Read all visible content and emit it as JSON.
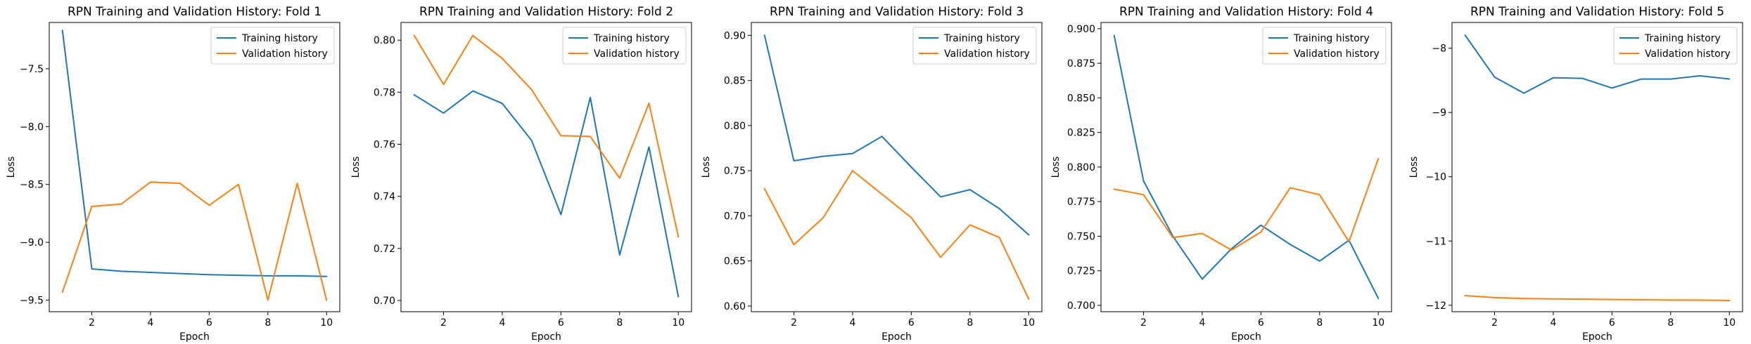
{
  "colors": {
    "training": "#1f77b4",
    "validation": "#ff7f0e"
  },
  "chart_data": [
    {
      "type": "line",
      "title": "RPN Training and Validation History: Fold 1",
      "xlabel": "Epoch",
      "ylabel": "Loss",
      "x": [
        1,
        2,
        3,
        4,
        5,
        6,
        7,
        8,
        9,
        10
      ],
      "xlim": [
        0.55,
        10.45
      ],
      "ylim": [
        -9.6,
        -7.1
      ],
      "xticks": [
        2,
        4,
        6,
        8,
        10
      ],
      "xtick_labels": [
        "2",
        "4",
        "6",
        "8",
        "10"
      ],
      "yticks": [
        -9.5,
        -9.0,
        -8.5,
        -8.0,
        -7.5
      ],
      "ytick_labels": [
        "−9.5",
        "−9.0",
        "−8.5",
        "−8.0",
        "−7.5"
      ],
      "legend": "upper-right",
      "series": [
        {
          "name": "Training history",
          "values": [
            -7.17,
            -9.23,
            -9.25,
            -9.26,
            -9.27,
            -9.28,
            -9.285,
            -9.29,
            -9.29,
            -9.295
          ]
        },
        {
          "name": "Validation history",
          "values": [
            -9.43,
            -8.69,
            -8.67,
            -8.48,
            -8.49,
            -8.68,
            -8.5,
            -9.5,
            -8.49,
            -9.5
          ]
        }
      ]
    },
    {
      "type": "line",
      "title": "RPN Training and Validation History: Fold 2",
      "xlabel": "Epoch",
      "ylabel": "Loss",
      "x": [
        1,
        2,
        3,
        4,
        5,
        6,
        7,
        8,
        9,
        10
      ],
      "xlim": [
        0.55,
        10.45
      ],
      "ylim": [
        0.6957,
        0.8068
      ],
      "xticks": [
        2,
        4,
        6,
        8,
        10
      ],
      "xtick_labels": [
        "2",
        "4",
        "6",
        "8",
        "10"
      ],
      "yticks": [
        0.7,
        0.72,
        0.74,
        0.76,
        0.78,
        0.8
      ],
      "ytick_labels": [
        "0.70",
        "0.72",
        "0.74",
        "0.76",
        "0.78",
        "0.80"
      ],
      "legend": "upper-right",
      "series": [
        {
          "name": "Training history",
          "values": [
            0.779,
            0.772,
            0.7805,
            0.7757,
            0.7615,
            0.733,
            0.778,
            0.7175,
            0.759,
            0.7015
          ]
        },
        {
          "name": "Validation history",
          "values": [
            0.8018,
            0.783,
            0.8018,
            0.793,
            0.781,
            0.7633,
            0.763,
            0.747,
            0.7758,
            0.7245
          ]
        }
      ]
    },
    {
      "type": "line",
      "title": "RPN Training and Validation History: Fold 3",
      "xlabel": "Epoch",
      "ylabel": "Loss",
      "x": [
        1,
        2,
        3,
        4,
        5,
        6,
        7,
        8,
        9,
        10
      ],
      "xlim": [
        0.55,
        10.45
      ],
      "ylim": [
        0.5937,
        0.9143
      ],
      "xticks": [
        2,
        4,
        6,
        8,
        10
      ],
      "xtick_labels": [
        "2",
        "4",
        "6",
        "8",
        "10"
      ],
      "yticks": [
        0.6,
        0.65,
        0.7,
        0.75,
        0.8,
        0.85,
        0.9
      ],
      "ytick_labels": [
        "0.60",
        "0.65",
        "0.70",
        "0.75",
        "0.80",
        "0.85",
        "0.90"
      ],
      "legend": "upper-right",
      "series": [
        {
          "name": "Training history",
          "values": [
            0.9,
            0.761,
            0.766,
            0.769,
            0.788,
            0.754,
            0.721,
            0.729,
            0.708,
            0.679
          ]
        },
        {
          "name": "Validation history",
          "values": [
            0.73,
            0.668,
            0.698,
            0.75,
            0.724,
            0.698,
            0.654,
            0.69,
            0.676,
            0.608
          ]
        }
      ]
    },
    {
      "type": "line",
      "title": "RPN Training and Validation History: Fold 4",
      "xlabel": "Epoch",
      "ylabel": "Loss",
      "x": [
        1,
        2,
        3,
        4,
        5,
        6,
        7,
        8,
        9,
        10
      ],
      "xlim": [
        0.55,
        10.45
      ],
      "ylim": [
        0.6954,
        0.9045
      ],
      "xticks": [
        2,
        4,
        6,
        8,
        10
      ],
      "xtick_labels": [
        "2",
        "4",
        "6",
        "8",
        "10"
      ],
      "yticks": [
        0.7,
        0.725,
        0.75,
        0.775,
        0.8,
        0.825,
        0.85,
        0.875,
        0.9
      ],
      "ytick_labels": [
        "0.700",
        "0.725",
        "0.750",
        "0.775",
        "0.800",
        "0.825",
        "0.850",
        "0.875",
        "0.900"
      ],
      "legend": "upper-right",
      "series": [
        {
          "name": "Training history",
          "values": [
            0.895,
            0.79,
            0.75,
            0.719,
            0.741,
            0.758,
            0.744,
            0.732,
            0.747,
            0.705
          ]
        },
        {
          "name": "Validation history",
          "values": [
            0.784,
            0.78,
            0.749,
            0.752,
            0.74,
            0.753,
            0.785,
            0.78,
            0.746,
            0.806
          ]
        }
      ]
    },
    {
      "type": "line",
      "title": "RPN Training and Validation History: Fold 5",
      "xlabel": "Epoch",
      "ylabel": "Loss",
      "x": [
        1,
        2,
        3,
        4,
        5,
        6,
        7,
        8,
        9,
        10
      ],
      "xlim": [
        0.55,
        10.45
      ],
      "ylim": [
        -12.1,
        -7.6
      ],
      "xticks": [
        2,
        4,
        6,
        8,
        10
      ],
      "xtick_labels": [
        "2",
        "4",
        "6",
        "8",
        "10"
      ],
      "yticks": [
        -12,
        -11,
        -10,
        -9,
        -8
      ],
      "ytick_labels": [
        "−12",
        "−11",
        "−10",
        "−9",
        "−8"
      ],
      "legend": "upper-right",
      "series": [
        {
          "name": "Training history",
          "values": [
            -7.8,
            -8.45,
            -8.7,
            -8.46,
            -8.47,
            -8.62,
            -8.48,
            -8.48,
            -8.43,
            -8.48
          ]
        },
        {
          "name": "Validation history",
          "values": [
            -11.85,
            -11.88,
            -11.895,
            -11.9,
            -11.905,
            -11.91,
            -11.915,
            -11.918,
            -11.92,
            -11.925
          ]
        }
      ]
    }
  ]
}
